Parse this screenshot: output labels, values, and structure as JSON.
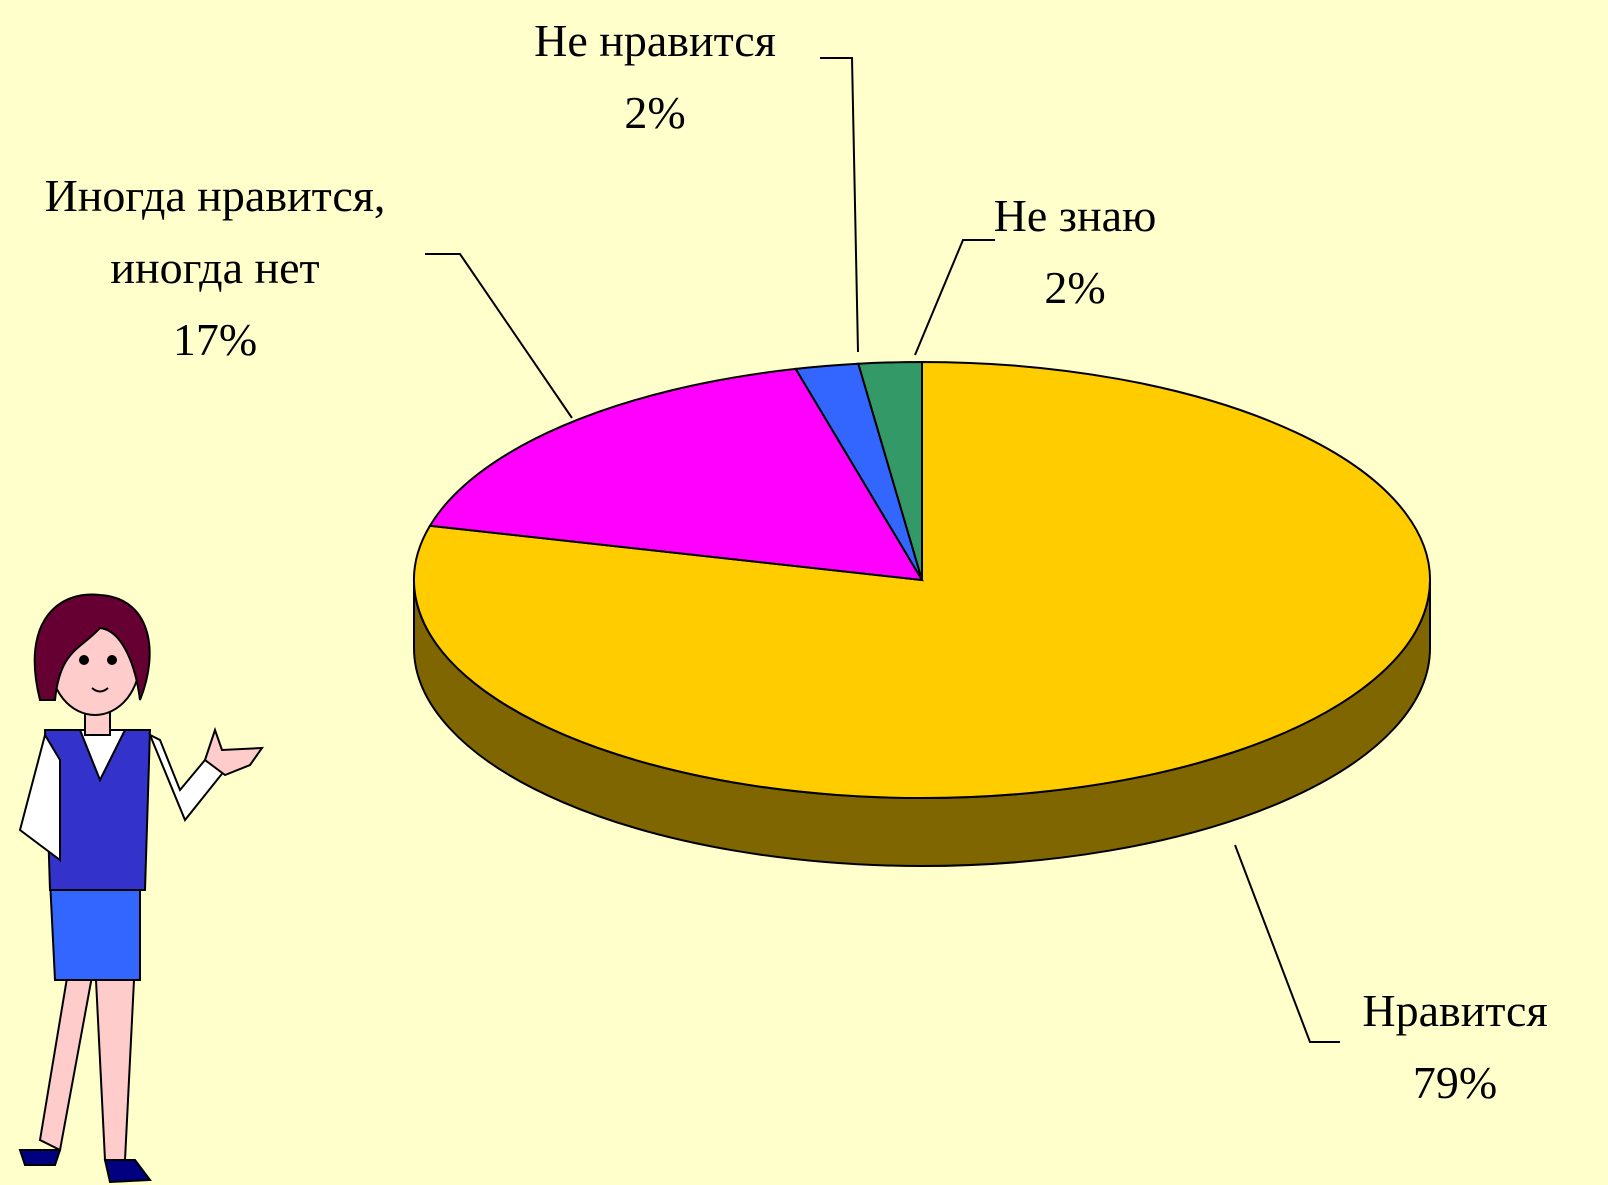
{
  "chart_data": {
    "type": "pie3d",
    "categories": [
      "Нравится",
      "Иногда нравится,\nиногда нет",
      "Не нравится",
      "Не знаю"
    ],
    "values": [
      79,
      17,
      2,
      2
    ],
    "value_labels": [
      "79%",
      "17%",
      "2%",
      "2%"
    ],
    "colors": [
      "#ffcc00",
      "#ff00ff",
      "#3366ff",
      "#339966"
    ],
    "side_colors": [
      "#806600",
      "#800080",
      "#1a3380",
      "#1a4d33"
    ]
  }
}
